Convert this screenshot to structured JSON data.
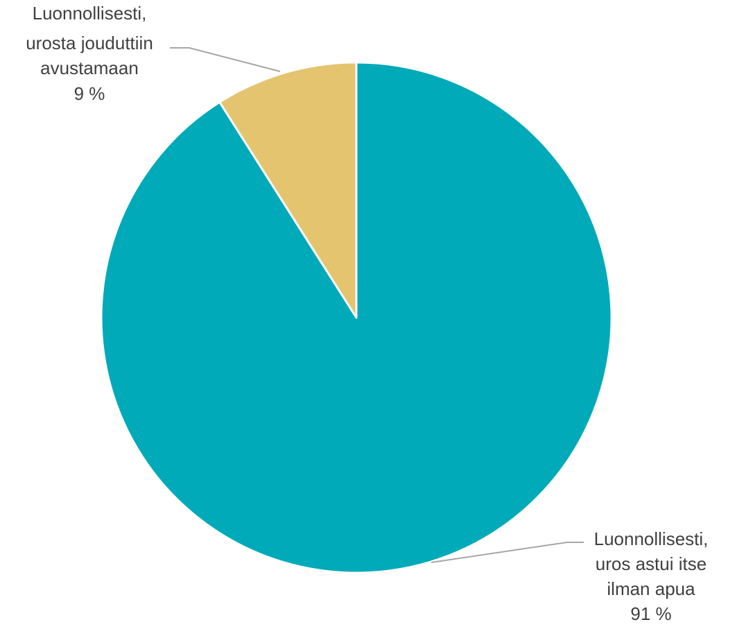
{
  "chart_data": {
    "type": "pie",
    "title": "",
    "slices": [
      {
        "label_lines": [
          "Luonnollisesti,",
          "uros astui itse",
          "ilman apua"
        ],
        "value_label": "91 %",
        "value": 91,
        "color": "#00aab9"
      },
      {
        "label_lines": [
          "Luonnollisesti,",
          "urosta jouduttiin",
          "avustamaan"
        ],
        "value_label": "9 %",
        "value": 9,
        "color": "#e4c46f"
      }
    ],
    "start_angle": "12 o'clock",
    "direction": "clockwise",
    "legend": "none",
    "label_style": "outside with leader lines"
  }
}
